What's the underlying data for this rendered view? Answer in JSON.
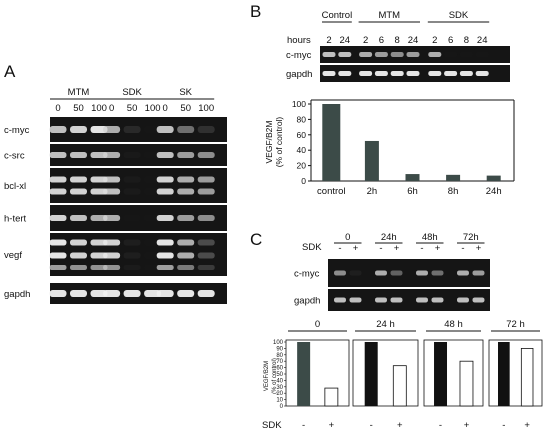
{
  "panels": {
    "A": {
      "letter": "A",
      "groups": [
        {
          "label": "MTM",
          "doses": [
            "0",
            "50",
            "100"
          ]
        },
        {
          "label": "SDK",
          "doses": [
            "0",
            "50",
            "100"
          ]
        },
        {
          "label": "SK",
          "doses": [
            "0",
            "50",
            "100"
          ]
        }
      ],
      "genes": [
        "c-myc",
        "c-src",
        "bcl-xl",
        "h-tert",
        "vegf",
        "gapdh"
      ],
      "band_intensity": [
        [
          0.85,
          0.9,
          0.95,
          0.8,
          0.25,
          0.05,
          0.85,
          0.6,
          0.3
        ],
        [
          0.85,
          0.85,
          0.85,
          0.8,
          0.08,
          0.03,
          0.85,
          0.75,
          0.7
        ],
        [
          0.9,
          0.9,
          0.9,
          0.85,
          0.1,
          0.03,
          0.9,
          0.8,
          0.75
        ],
        [
          0.9,
          0.85,
          0.8,
          0.8,
          0.05,
          0.03,
          0.9,
          0.75,
          0.7
        ],
        [
          0.95,
          0.9,
          0.9,
          0.9,
          0.15,
          0.05,
          0.95,
          0.8,
          0.45
        ],
        [
          0.95,
          0.95,
          0.95,
          0.95,
          0.95,
          0.95,
          0.95,
          0.95,
          0.95
        ]
      ]
    },
    "B": {
      "letter": "B",
      "time_label": "hours",
      "groups": [
        {
          "label": "Control",
          "times": [
            "2",
            "24"
          ]
        },
        {
          "label": "MTM",
          "times": [
            "2",
            "6",
            "8",
            "24"
          ]
        },
        {
          "label": "SDK",
          "times": [
            "2",
            "6",
            "8",
            "24"
          ]
        }
      ],
      "genes": [
        "c-myc",
        "gapdh"
      ],
      "band_intensity": [
        [
          0.85,
          0.85,
          0.8,
          0.75,
          0.7,
          0.75,
          0.8,
          0.03,
          0.03,
          0.03
        ],
        [
          0.95,
          0.95,
          0.95,
          0.95,
          0.95,
          0.95,
          0.95,
          0.95,
          0.95,
          0.95
        ]
      ],
      "chart_data": {
        "type": "bar",
        "ylabel": "VEGF/B2M\n(% of control)",
        "categories": [
          "control",
          "2h",
          "6h",
          "8h",
          "24h"
        ],
        "values": [
          100,
          52,
          9,
          8,
          7
        ],
        "ylim": [
          0,
          100
        ],
        "yticks": [
          "0",
          "20",
          "40",
          "60",
          "80",
          "100"
        ],
        "bar_color": "#3c4b48"
      }
    },
    "C": {
      "letter": "C",
      "treatment_label": "SDK",
      "times": [
        "0",
        "24h",
        "48h",
        "72h"
      ],
      "signs": [
        "-",
        "+",
        "-",
        "+",
        "-",
        "+",
        "-",
        "+"
      ],
      "genes": [
        "c-myc",
        "gapdh"
      ],
      "band_intensity": [
        [
          0.7,
          0.15,
          0.8,
          0.55,
          0.8,
          0.6,
          0.8,
          0.75
        ],
        [
          0.85,
          0.85,
          0.85,
          0.85,
          0.85,
          0.85,
          0.85,
          0.85
        ]
      ],
      "chart_data": {
        "type": "bar",
        "ylabel": "VEGF/B2M\n(% of control)",
        "subplot_titles": [
          "0",
          "24 h",
          "48 h",
          "72 h"
        ],
        "x_label": "SDK",
        "signs": [
          "-",
          "+",
          "-",
          "+",
          "-",
          "+",
          "-",
          "+"
        ],
        "values": [
          100,
          28,
          100,
          63,
          100,
          70,
          100,
          90
        ],
        "ylim": [
          0,
          100
        ],
        "yticks": [
          "0",
          "10",
          "20",
          "30",
          "40",
          "50",
          "60",
          "70",
          "80",
          "90",
          "100"
        ],
        "control_colors": [
          "#3c4b48",
          "#111111",
          "#111111",
          "#111111"
        ]
      }
    }
  }
}
